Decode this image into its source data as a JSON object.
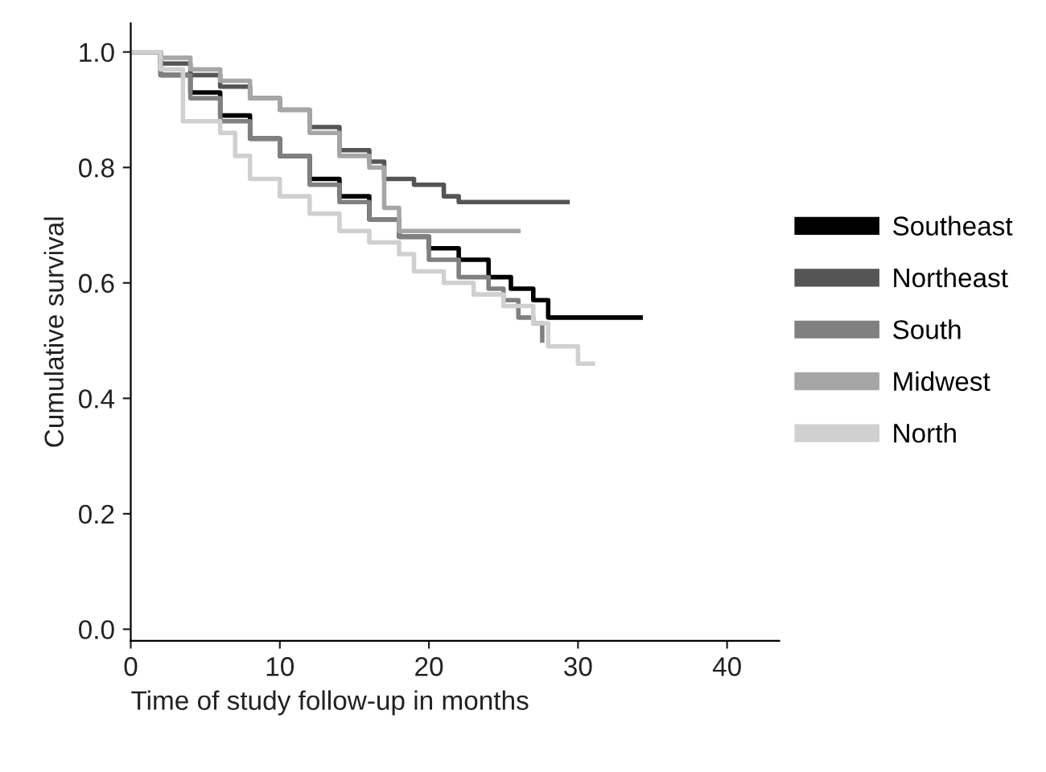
{
  "chart_data": {
    "type": "step",
    "xlabel": "Time of study follow-up in months",
    "ylabel": "Cumulative survival",
    "xlim": [
      0,
      43.5
    ],
    "xticks": [
      0,
      10,
      20,
      30,
      40
    ],
    "ylim": [
      -0.02,
      1.05
    ],
    "yticks": [
      {
        "value": 0,
        "label": "0.0"
      },
      {
        "value": 0.2,
        "label": "0.2"
      },
      {
        "value": 0.4,
        "label": "0.4"
      },
      {
        "value": 0.6,
        "label": "0.6"
      },
      {
        "value": 0.8,
        "label": "0.8"
      },
      {
        "value": 1,
        "label": "1.0"
      }
    ],
    "grid": false,
    "legend": "right",
    "marker": "none",
    "line_style": "solid",
    "series": [
      {
        "name": "Southeast",
        "color": "#000000",
        "x": [
          0,
          2,
          4,
          6,
          8,
          10,
          12,
          14,
          16,
          18,
          20,
          22,
          24,
          25.5,
          27,
          28,
          34.2
        ],
        "values": [
          1.0,
          0.96,
          0.93,
          0.89,
          0.85,
          0.82,
          0.78,
          0.75,
          0.71,
          0.68,
          0.66,
          0.64,
          0.61,
          0.59,
          0.57,
          0.54,
          0.54
        ]
      },
      {
        "name": "Northeast",
        "color": "#555555",
        "x": [
          0,
          2,
          4,
          6,
          8,
          10,
          12,
          14,
          16,
          17,
          19,
          21,
          22,
          29.3
        ],
        "values": [
          1.0,
          0.98,
          0.96,
          0.94,
          0.92,
          0.9,
          0.87,
          0.83,
          0.81,
          0.78,
          0.77,
          0.75,
          0.74,
          0.74
        ]
      },
      {
        "name": "South",
        "color": "#808080",
        "x": [
          0,
          2,
          4,
          6,
          8,
          10,
          12,
          14,
          16,
          18,
          20,
          22,
          24,
          25,
          26,
          27,
          27.6
        ],
        "values": [
          1.0,
          0.96,
          0.92,
          0.88,
          0.85,
          0.82,
          0.77,
          0.74,
          0.71,
          0.68,
          0.64,
          0.61,
          0.59,
          0.57,
          0.54,
          0.53,
          0.5
        ]
      },
      {
        "name": "Midwest",
        "color": "#a6a6a6",
        "x": [
          0,
          2,
          4,
          6,
          8,
          10,
          12,
          14,
          16,
          17,
          18,
          26
        ],
        "values": [
          1.0,
          0.99,
          0.97,
          0.95,
          0.92,
          0.9,
          0.86,
          0.82,
          0.8,
          0.73,
          0.69,
          0.69
        ]
      },
      {
        "name": "North",
        "color": "#d0d0d0",
        "x": [
          0,
          2,
          3.5,
          6,
          7,
          8,
          10,
          12,
          14,
          16,
          18,
          19,
          21,
          23,
          25,
          27,
          28,
          29.5,
          30,
          31
        ],
        "values": [
          1.0,
          0.97,
          0.88,
          0.86,
          0.82,
          0.78,
          0.75,
          0.72,
          0.69,
          0.67,
          0.65,
          0.62,
          0.6,
          0.58,
          0.56,
          0.53,
          0.49,
          0.49,
          0.46,
          0.46
        ]
      }
    ]
  }
}
